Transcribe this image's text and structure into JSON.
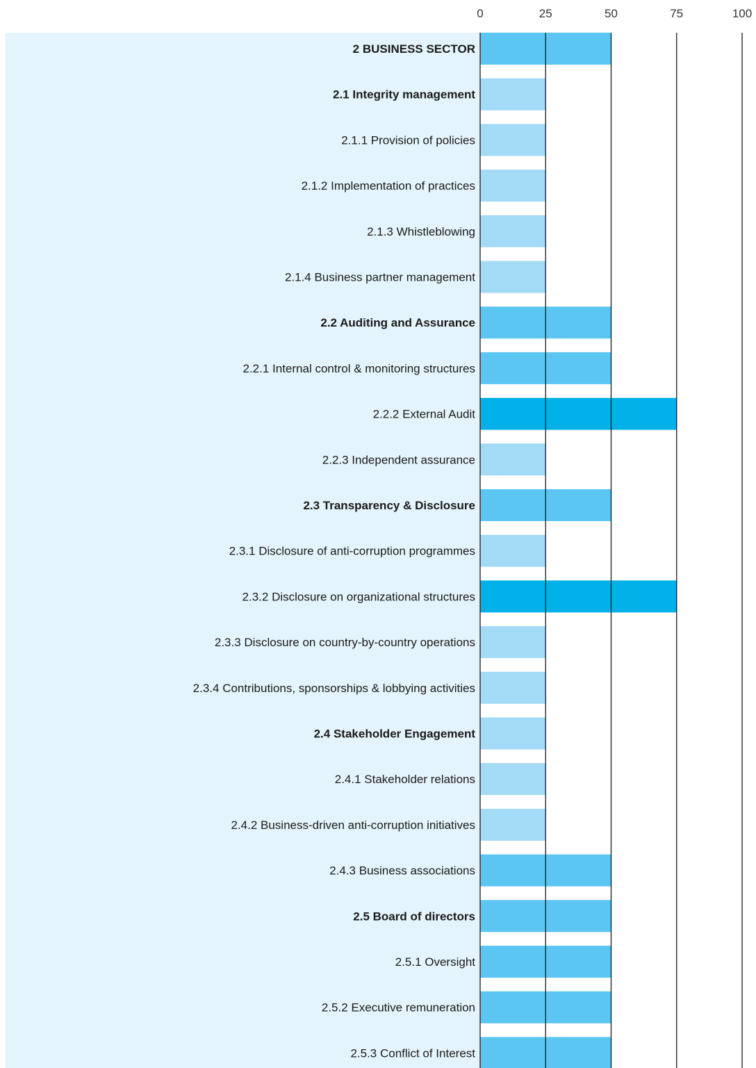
{
  "chart_data": {
    "type": "bar",
    "orientation": "horizontal",
    "xlim": [
      0,
      100
    ],
    "ticks": [
      0,
      25,
      50,
      75,
      100
    ],
    "grid": true,
    "colors": {
      "band": "#e4f4fc",
      "level_25": "#a3daf6",
      "level_50": "#5cc6f2",
      "level_75": "#00b1e9",
      "gridline": "#1a1a1a"
    },
    "categories": [
      {
        "label": "2 BUSINESS SECTOR",
        "value": 50,
        "bold": true
      },
      {
        "label": "2.1 Integrity management",
        "value": 25,
        "bold": true
      },
      {
        "label": "2.1.1 Provision of policies",
        "value": 25,
        "bold": false
      },
      {
        "label": "2.1.2 Implementation of practices",
        "value": 25,
        "bold": false
      },
      {
        "label": "2.1.3 Whistleblowing",
        "value": 25,
        "bold": false
      },
      {
        "label": "2.1.4 Business partner management",
        "value": 25,
        "bold": false
      },
      {
        "label": "2.2 Auditing and Assurance",
        "value": 50,
        "bold": true
      },
      {
        "label": "2.2.1 Internal control & monitoring structures",
        "value": 50,
        "bold": false
      },
      {
        "label": "2.2.2 External Audit",
        "value": 75,
        "bold": false
      },
      {
        "label": "2.2.3 Independent assurance",
        "value": 25,
        "bold": false
      },
      {
        "label": "2.3 Transparency & Disclosure",
        "value": 50,
        "bold": true
      },
      {
        "label": "2.3.1 Disclosure of anti-corruption programmes",
        "value": 25,
        "bold": false
      },
      {
        "label": "2.3.2 Disclosure on organizational structures",
        "value": 75,
        "bold": false
      },
      {
        "label": "2.3.3 Disclosure on country-by-country operations",
        "value": 25,
        "bold": false
      },
      {
        "label": "2.3.4 Contributions, sponsorships & lobbying activities",
        "value": 25,
        "bold": false
      },
      {
        "label": "2.4 Stakeholder Engagement",
        "value": 25,
        "bold": true
      },
      {
        "label": "2.4.1 Stakeholder relations",
        "value": 25,
        "bold": false
      },
      {
        "label": "2.4.2 Business-driven anti-corruption initiatives",
        "value": 25,
        "bold": false
      },
      {
        "label": "2.4.3 Business associations",
        "value": 50,
        "bold": false
      },
      {
        "label": "2.5 Board of directors",
        "value": 50,
        "bold": true
      },
      {
        "label": "2.5.1 Oversight",
        "value": 50,
        "bold": false
      },
      {
        "label": "2.5.2 Executive remuneration",
        "value": 50,
        "bold": false
      },
      {
        "label": "2.5.3 Conflict of Interest",
        "value": 50,
        "bold": false
      }
    ]
  }
}
